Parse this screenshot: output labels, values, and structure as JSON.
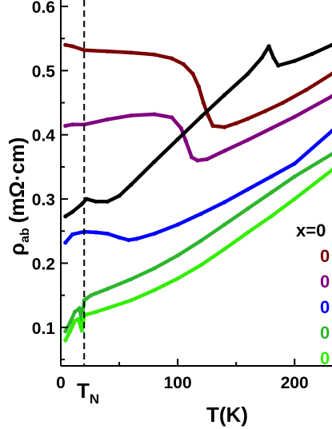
{
  "chart_data": {
    "type": "line",
    "xlabel": "T(K)",
    "ylabel": "ρ",
    "ylabel_sub": "ab",
    "ylabel_unit": "(mΩ·cm)",
    "xlim": [
      0,
      232
    ],
    "ylim": [
      0.04,
      0.61
    ],
    "x_ticks": [
      0,
      100,
      200
    ],
    "y_ticks": [
      0.1,
      0.2,
      0.3,
      0.4,
      0.5,
      0.6
    ],
    "y_tick_labels": [
      "0.1",
      "0.2",
      "0.3",
      "0.4",
      "0.5",
      "0.6"
    ],
    "tn_marker": {
      "x": 20,
      "label": "T",
      "sub": "N"
    },
    "legend": {
      "title": "x=0",
      "entries": [
        {
          "label": "0",
          "color": "#7a0000"
        },
        {
          "label": "0",
          "color": "#800080"
        },
        {
          "label": "0",
          "color": "#0000ff"
        },
        {
          "label": "0",
          "color": "#2db52d"
        },
        {
          "label": "0",
          "color": "#33ee00"
        }
      ]
    },
    "series": [
      {
        "color": "#7a0000",
        "x": [
          4,
          10,
          20,
          40,
          60,
          80,
          95,
          105,
          113,
          118,
          122,
          126,
          130,
          140,
          150,
          160,
          175,
          190,
          210,
          232
        ],
        "y": [
          0.54,
          0.538,
          0.532,
          0.53,
          0.528,
          0.525,
          0.519,
          0.51,
          0.495,
          0.475,
          0.45,
          0.43,
          0.414,
          0.412,
          0.418,
          0.425,
          0.437,
          0.45,
          0.47,
          0.495
        ]
      },
      {
        "color": "#800080",
        "x": [
          4,
          10,
          20,
          40,
          60,
          80,
          95,
          103,
          107,
          112,
          117,
          125,
          140,
          160,
          180,
          200,
          232
        ],
        "y": [
          0.414,
          0.416,
          0.416,
          0.424,
          0.43,
          0.432,
          0.427,
          0.41,
          0.39,
          0.365,
          0.36,
          0.362,
          0.375,
          0.392,
          0.41,
          0.428,
          0.46
        ]
      },
      {
        "color": "#000000",
        "x": [
          4,
          10,
          18,
          22,
          30,
          40,
          50,
          60,
          80,
          100,
          120,
          140,
          160,
          172,
          178,
          182,
          186,
          200,
          215,
          232
        ],
        "y": [
          0.273,
          0.28,
          0.292,
          0.3,
          0.296,
          0.296,
          0.305,
          0.322,
          0.358,
          0.393,
          0.428,
          0.462,
          0.495,
          0.52,
          0.538,
          0.52,
          0.508,
          0.515,
          0.526,
          0.54
        ]
      },
      {
        "color": "#0000ff",
        "x": [
          4,
          10,
          20,
          30,
          40,
          50,
          58,
          65,
          80,
          100,
          120,
          140,
          160,
          180,
          200,
          232
        ],
        "y": [
          0.232,
          0.245,
          0.249,
          0.248,
          0.246,
          0.24,
          0.236,
          0.238,
          0.246,
          0.26,
          0.277,
          0.295,
          0.315,
          0.335,
          0.355,
          0.406
        ]
      },
      {
        "color": "#2db52d",
        "x": [
          4,
          8,
          12,
          16,
          18,
          20,
          22,
          26,
          30,
          40,
          60,
          80,
          100,
          120,
          140,
          160,
          180,
          200,
          232
        ],
        "y": [
          0.094,
          0.108,
          0.124,
          0.13,
          0.11,
          0.142,
          0.145,
          0.15,
          0.153,
          0.16,
          0.175,
          0.192,
          0.212,
          0.235,
          0.26,
          0.285,
          0.31,
          0.335,
          0.37
        ]
      },
      {
        "color": "#33ee00",
        "x": [
          4,
          8,
          12,
          15,
          18,
          20,
          22,
          30,
          40,
          60,
          80,
          100,
          120,
          140,
          160,
          180,
          200,
          232
        ],
        "y": [
          0.08,
          0.094,
          0.11,
          0.113,
          0.095,
          0.118,
          0.12,
          0.124,
          0.13,
          0.142,
          0.158,
          0.176,
          0.197,
          0.222,
          0.248,
          0.273,
          0.3,
          0.345
        ]
      }
    ]
  }
}
